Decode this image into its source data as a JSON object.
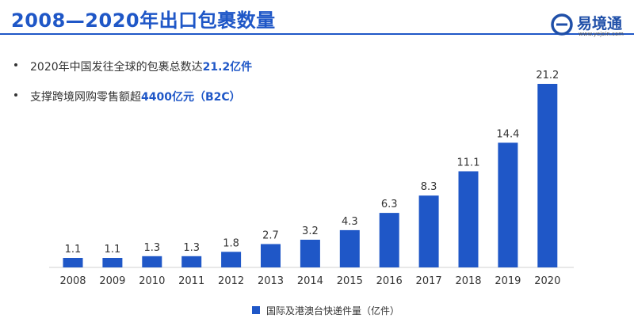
{
  "slide": {
    "title": "2008—2020年出口包裹数量",
    "bullets": [
      {
        "text": "2020年中国发往全球的包裹总数达",
        "highlight": "21.2亿件"
      },
      {
        "text": "支撑跨境网购零售额超",
        "highlight": "4400亿元（B2C）"
      }
    ]
  },
  "logo": {
    "name": "易境通",
    "url": "www.yejoin.com",
    "icon": "logo-e-icon"
  },
  "colors": {
    "accent": "#1f57c7",
    "bar": "#1f57c7",
    "text": "#333333"
  },
  "chart_data": {
    "type": "bar",
    "categories": [
      "2008",
      "2009",
      "2010",
      "2011",
      "2012",
      "2013",
      "2014",
      "2015",
      "2016",
      "2017",
      "2018",
      "2019",
      "2020"
    ],
    "series": [
      {
        "name": "国际及港澳台快递件量（亿件）",
        "values": [
          1.1,
          1.1,
          1.3,
          1.3,
          1.8,
          2.7,
          3.2,
          4.3,
          6.3,
          8.3,
          11.1,
          14.4,
          21.2
        ]
      }
    ],
    "data_labels": [
      "1.1",
      "1.1",
      "1.3",
      "1.3",
      "1.8",
      "2.7",
      "3.2",
      "4.3",
      "6.3",
      "8.3",
      "11.1",
      "14.4",
      "21.2"
    ],
    "ylim": [
      0,
      21.2
    ],
    "yaxis_visible": false,
    "grid": false,
    "legend": "bottom-center"
  }
}
